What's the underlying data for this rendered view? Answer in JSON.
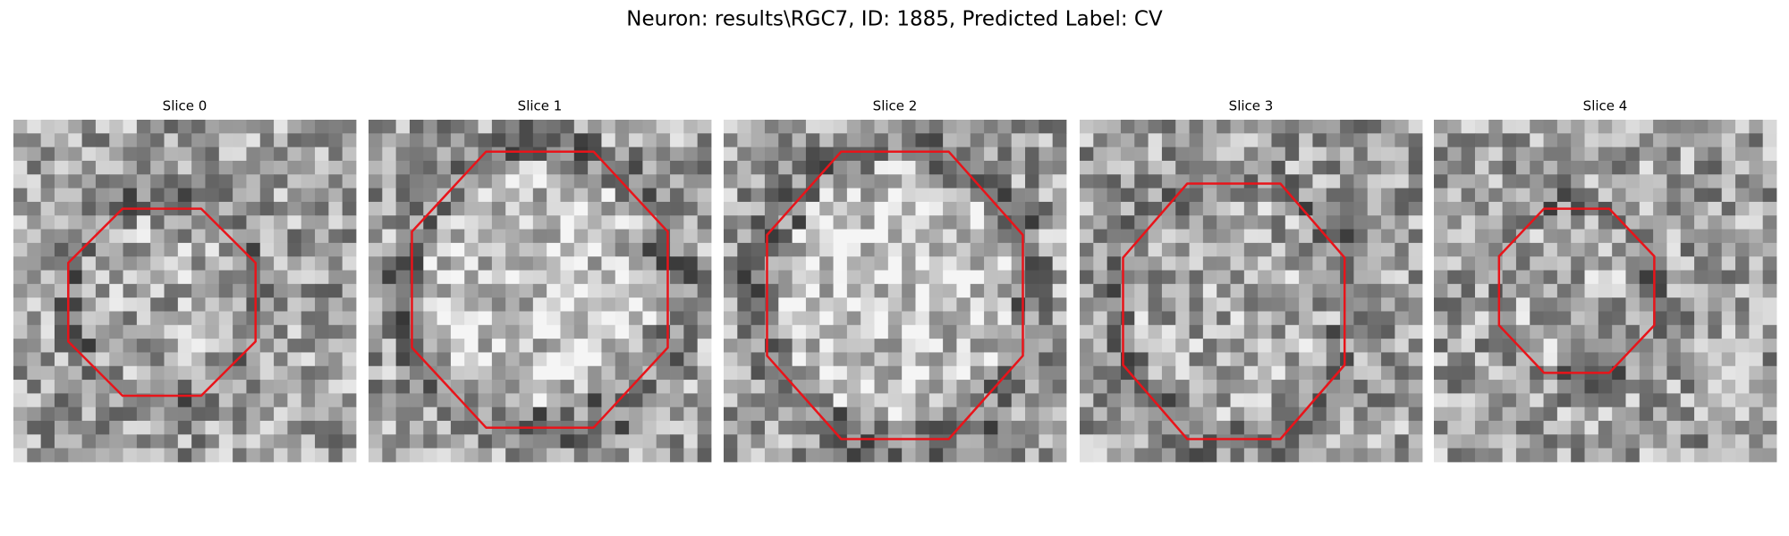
{
  "title": "Neuron: results\\RGC7, ID: 1885, Predicted Label: CV",
  "panels": [
    {
      "title": "Slice 0"
    },
    {
      "title": "Slice 1"
    },
    {
      "title": "Slice 2"
    },
    {
      "title": "Slice 3"
    },
    {
      "title": "Slice 4"
    }
  ]
}
